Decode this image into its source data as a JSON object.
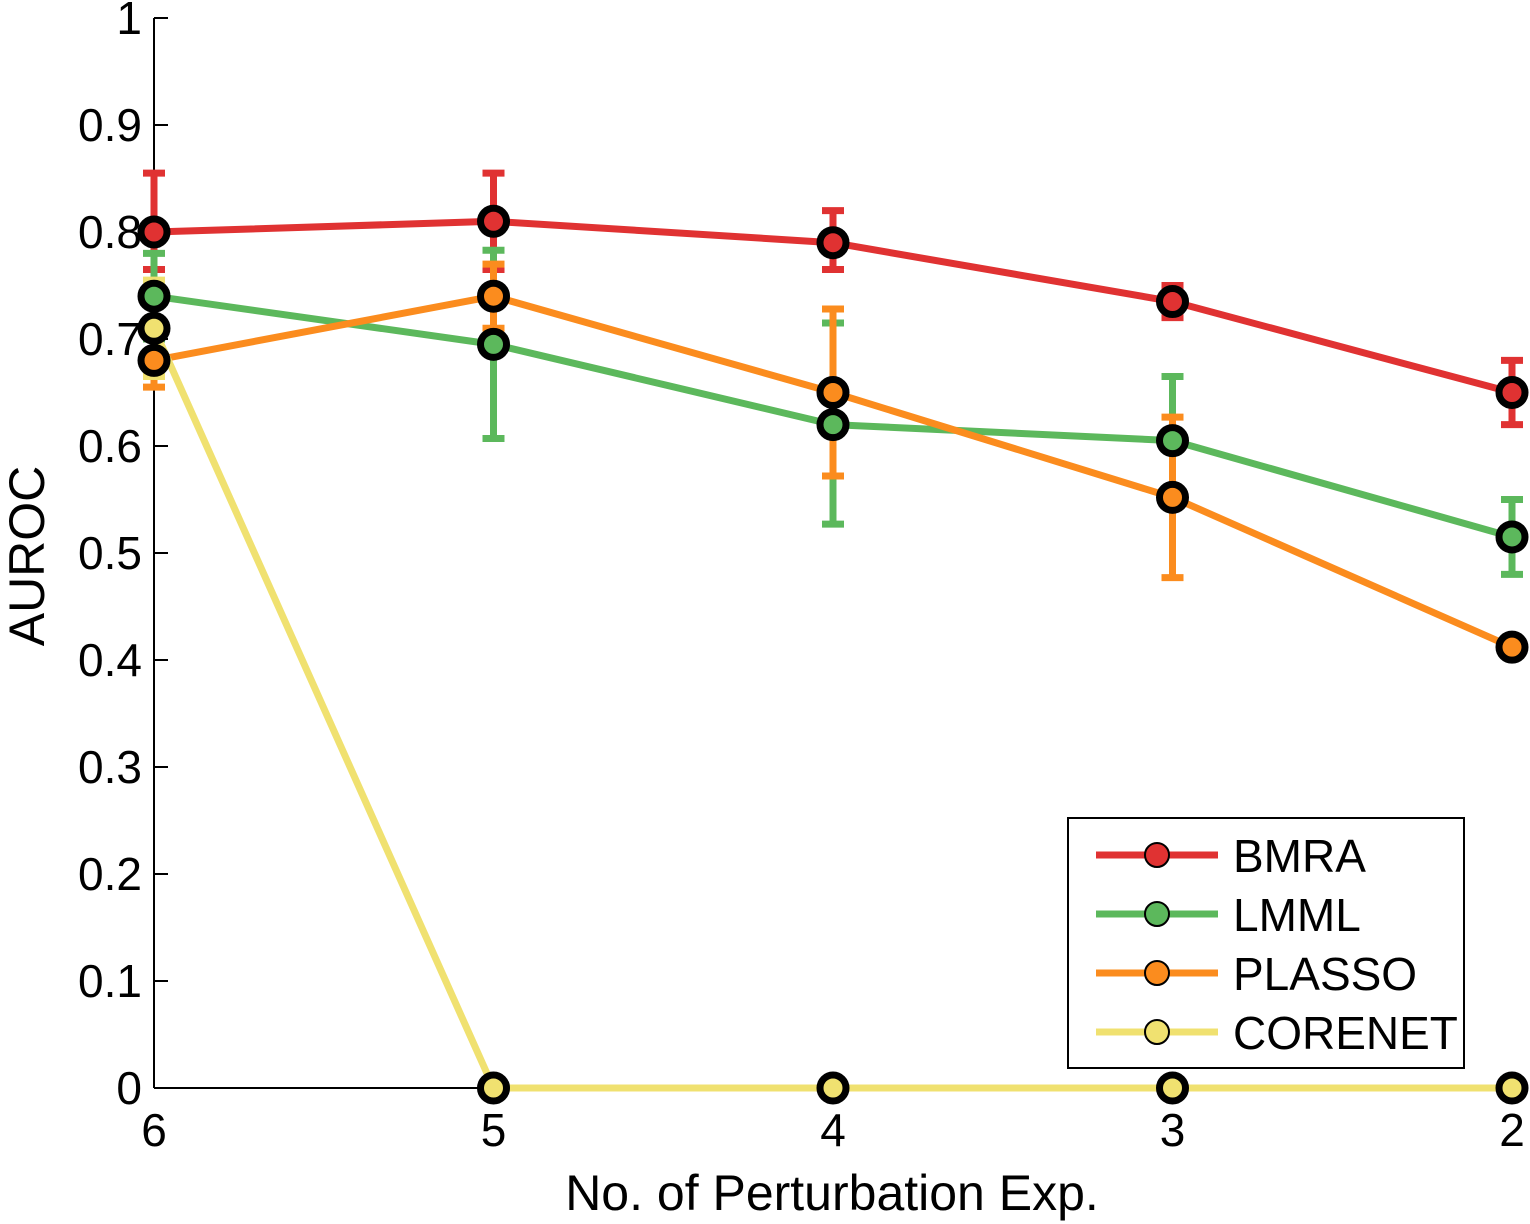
{
  "chart_data": {
    "type": "line",
    "title": "",
    "xlabel": "No. of Perturbation Exp.",
    "ylabel": "AUROC",
    "x": [
      6,
      5,
      4,
      3,
      2
    ],
    "x_ticks": [
      "6",
      "5",
      "4",
      "3",
      "2"
    ],
    "y_ticks": [
      "0",
      "0.1",
      "0.2",
      "0.3",
      "0.4",
      "0.5",
      "0.6",
      "0.7",
      "0.8",
      "0.9",
      "1"
    ],
    "ylim": [
      0,
      1
    ],
    "x_reversed": true,
    "grid": false,
    "legend_position": "bottom-right",
    "error_bars": true,
    "series": [
      {
        "name": "BMRA",
        "color": "#e03232",
        "values": [
          0.8,
          0.81,
          0.79,
          0.735,
          0.65
        ],
        "error_low": [
          0.765,
          0.765,
          0.765,
          0.72,
          0.62
        ],
        "error_high": [
          0.855,
          0.855,
          0.82,
          0.75,
          0.68
        ]
      },
      {
        "name": "LMML",
        "color": "#5cb85c",
        "values": [
          0.74,
          0.695,
          0.62,
          0.605,
          0.515
        ],
        "error_low": [
          0.7,
          0.607,
          0.527,
          0.545,
          0.48
        ],
        "error_high": [
          0.78,
          0.783,
          0.715,
          0.665,
          0.55
        ]
      },
      {
        "name": "PLASSO",
        "color": "#fb8c1e",
        "values": [
          0.68,
          0.74,
          0.65,
          0.552,
          0.412
        ],
        "error_low": [
          0.655,
          0.71,
          0.572,
          0.477,
          0.41
        ],
        "error_high": [
          0.705,
          0.77,
          0.728,
          0.627,
          0.415
        ]
      },
      {
        "name": "CORENET",
        "color": "#f0e170",
        "values": [
          0.71,
          0,
          0,
          0,
          0
        ],
        "error_low": [
          0.665,
          0,
          0,
          0,
          0
        ],
        "error_high": [
          0.755,
          0,
          0,
          0,
          0
        ]
      }
    ]
  }
}
